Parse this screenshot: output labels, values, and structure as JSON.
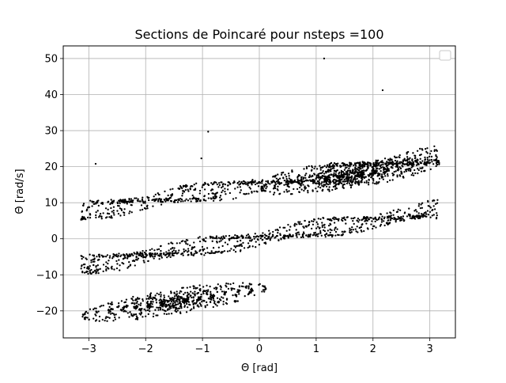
{
  "chart_data": {
    "type": "scatter",
    "title": "Sections de Poincaré pour nsteps =100",
    "xlabel": "Θ [rad]",
    "ylabel": "Θ̇ [rad/s]",
    "xlim": [
      -3.45,
      3.45
    ],
    "ylim": [
      -27.5,
      53.5
    ],
    "xticks": [
      -3,
      -2,
      -1,
      0,
      1,
      2,
      3
    ],
    "yticks": [
      -20,
      -10,
      0,
      10,
      20,
      30,
      40,
      50
    ],
    "grid": true,
    "legend": "top-right (empty)",
    "marker_color": "#000000",
    "bands": [
      {
        "name": "upper-sheet",
        "x_range": [
          -3.14,
          3.14
        ],
        "y_center_at_xmin": 7.5,
        "slope": 2.45,
        "half_width": 2.2,
        "density": 900
      },
      {
        "name": "middle-sheet",
        "x_range": [
          -3.14,
          3.14
        ],
        "y_center_at_xmin": -7.5,
        "slope": 2.45,
        "half_width": 2.2,
        "density": 900
      },
      {
        "name": "lower-lobe",
        "center": [
          -1.5,
          -17.5
        ],
        "radii": [
          1.6,
          5.5
        ],
        "density": 700
      },
      {
        "name": "upper-lobe",
        "center": [
          1.6,
          17.5
        ],
        "radii": [
          1.55,
          5.5
        ],
        "density": 700
      }
    ],
    "isolated_points": [
      {
        "x": -2.88,
        "y": 20.8
      },
      {
        "x": -1.02,
        "y": 22.3
      },
      {
        "x": -0.9,
        "y": 29.7
      },
      {
        "x": 1.14,
        "y": 50.0
      },
      {
        "x": 2.17,
        "y": 41.2
      }
    ]
  }
}
